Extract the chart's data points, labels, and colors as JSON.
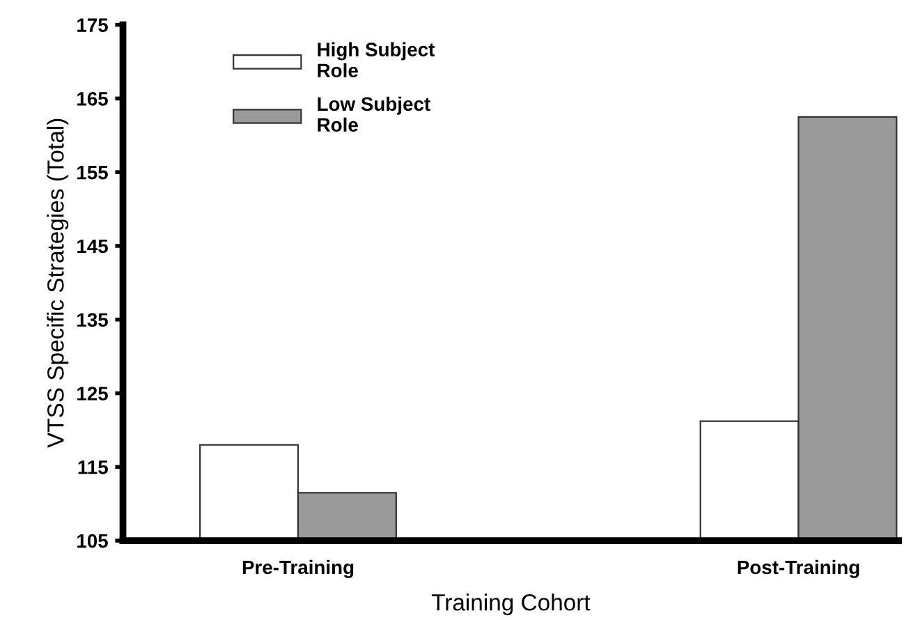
{
  "chart_data": {
    "type": "bar",
    "xlabel": "Training Cohort",
    "ylabel": "VTSS Specific Strategies (Total)",
    "categories": [
      "Pre-Training",
      "Post-Training"
    ],
    "series": [
      {
        "name": "High Subject\nRole",
        "color": "#ffffff",
        "values": [
          118,
          121.2
        ]
      },
      {
        "name": "Low Subject\nRole",
        "color": "#9a9a9a",
        "values": [
          111.5,
          162.5
        ]
      }
    ],
    "ylim": [
      105,
      175
    ],
    "yticks": [
      105,
      115,
      125,
      135,
      145,
      155,
      165,
      175
    ],
    "grid": false,
    "legend": "top left"
  }
}
